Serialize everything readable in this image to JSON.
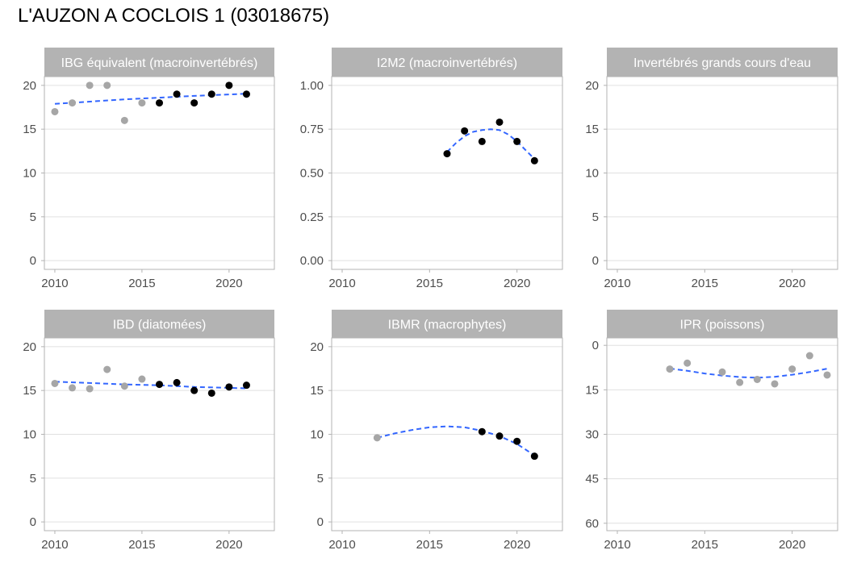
{
  "title": "L'AUZON A COCLOIS 1 (03018675)",
  "colors": {
    "strip": "#b3b3b3",
    "strip_text": "#ffffff",
    "grid": "#e0e0e0",
    "frame": "#b3b3b3",
    "tick_text": "#4d4d4d",
    "point_recent": "#000000",
    "point_old": "#a6a6a6",
    "trend": "#3366ff"
  },
  "chart_data": [
    {
      "type": "scatter",
      "title": "IBG équivalent (macroinvertébrés)",
      "xlim": [
        2009.4,
        2022.6
      ],
      "ylim": [
        -1,
        21
      ],
      "x_ticks": [
        2010,
        2015,
        2020
      ],
      "y_ticks": [
        0,
        5,
        10,
        15,
        20
      ],
      "y_tick_labels": [
        "0",
        "5",
        "10",
        "15",
        "20"
      ],
      "series": [
        {
          "color": "#a6a6a6",
          "points": [
            [
              2010,
              17
            ],
            [
              2011,
              18
            ],
            [
              2012,
              20
            ],
            [
              2013,
              20
            ],
            [
              2014,
              16
            ],
            [
              2015,
              18
            ]
          ]
        },
        {
          "color": "#000000",
          "points": [
            [
              2016,
              18
            ],
            [
              2017,
              19
            ],
            [
              2018,
              18
            ],
            [
              2019,
              19
            ],
            [
              2020,
              20
            ],
            [
              2021,
              19
            ]
          ]
        }
      ],
      "trend": [
        [
          2010,
          17.9
        ],
        [
          2012,
          18.15
        ],
        [
          2014,
          18.4
        ],
        [
          2016,
          18.6
        ],
        [
          2018,
          18.8
        ],
        [
          2021,
          19.05
        ]
      ]
    },
    {
      "type": "scatter",
      "title": "I2M2 (macroinvertébrés)",
      "xlim": [
        2009.4,
        2022.6
      ],
      "ylim": [
        -0.05,
        1.05
      ],
      "x_ticks": [
        2010,
        2015,
        2020
      ],
      "y_ticks": [
        0,
        0.25,
        0.5,
        0.75,
        1
      ],
      "y_tick_labels": [
        "0.00",
        "0.25",
        "0.50",
        "0.75",
        "1.00"
      ],
      "series": [
        {
          "color": "#000000",
          "points": [
            [
              2016,
              0.61
            ],
            [
              2017,
              0.74
            ],
            [
              2018,
              0.68
            ],
            [
              2019,
              0.79
            ],
            [
              2020,
              0.68
            ],
            [
              2021,
              0.57
            ]
          ]
        }
      ],
      "trend": [
        [
          2016,
          0.62
        ],
        [
          2016.5,
          0.67
        ],
        [
          2017,
          0.71
        ],
        [
          2017.5,
          0.735
        ],
        [
          2018,
          0.745
        ],
        [
          2018.5,
          0.75
        ],
        [
          2019,
          0.745
        ],
        [
          2019.5,
          0.72
        ],
        [
          2020,
          0.68
        ],
        [
          2020.5,
          0.63
        ],
        [
          2021,
          0.58
        ]
      ]
    },
    {
      "type": "scatter",
      "title": "Invertébrés grands cours d'eau",
      "xlim": [
        2009.4,
        2022.6
      ],
      "ylim": [
        -1,
        21
      ],
      "x_ticks": [
        2010,
        2015,
        2020
      ],
      "y_ticks": [
        0,
        5,
        10,
        15,
        20
      ],
      "y_tick_labels": [
        "0",
        "5",
        "10",
        "15",
        "20"
      ],
      "series": [],
      "trend": []
    },
    {
      "type": "scatter",
      "title": "IBD (diatomées)",
      "xlim": [
        2009.4,
        2022.6
      ],
      "ylim": [
        -1,
        21
      ],
      "x_ticks": [
        2010,
        2015,
        2020
      ],
      "y_ticks": [
        0,
        5,
        10,
        15,
        20
      ],
      "y_tick_labels": [
        "0",
        "5",
        "10",
        "15",
        "20"
      ],
      "series": [
        {
          "color": "#a6a6a6",
          "points": [
            [
              2010,
              15.8
            ],
            [
              2011,
              15.3
            ],
            [
              2012,
              15.2
            ],
            [
              2013,
              17.4
            ],
            [
              2014,
              15.5
            ],
            [
              2015,
              16.3
            ]
          ]
        },
        {
          "color": "#000000",
          "points": [
            [
              2016,
              15.7
            ],
            [
              2017,
              15.9
            ],
            [
              2018,
              15.0
            ],
            [
              2019,
              14.7
            ],
            [
              2020,
              15.4
            ],
            [
              2021,
              15.6
            ]
          ]
        }
      ],
      "trend": [
        [
          2010,
          16.0
        ],
        [
          2012,
          15.85
        ],
        [
          2014,
          15.7
        ],
        [
          2016,
          15.6
        ],
        [
          2018,
          15.4
        ],
        [
          2021,
          15.25
        ]
      ]
    },
    {
      "type": "scatter",
      "title": "IBMR (macrophytes)",
      "xlim": [
        2009.4,
        2022.6
      ],
      "ylim": [
        -1,
        21
      ],
      "x_ticks": [
        2010,
        2015,
        2020
      ],
      "y_ticks": [
        0,
        5,
        10,
        15,
        20
      ],
      "y_tick_labels": [
        "0",
        "5",
        "10",
        "15",
        "20"
      ],
      "series": [
        {
          "color": "#a6a6a6",
          "points": [
            [
              2012,
              9.6
            ]
          ]
        },
        {
          "color": "#000000",
          "points": [
            [
              2018,
              10.3
            ],
            [
              2019,
              9.8
            ],
            [
              2020,
              9.2
            ],
            [
              2021,
              7.5
            ]
          ]
        }
      ],
      "trend": [
        [
          2012,
          9.6
        ],
        [
          2013,
          10.1
        ],
        [
          2014,
          10.5
        ],
        [
          2015,
          10.8
        ],
        [
          2016,
          10.9
        ],
        [
          2017,
          10.8
        ],
        [
          2018,
          10.4
        ],
        [
          2019,
          9.8
        ],
        [
          2020,
          8.9
        ],
        [
          2021,
          7.6
        ]
      ]
    },
    {
      "type": "scatter",
      "title": "IPR (poissons)",
      "y_reversed": true,
      "xlim": [
        2009.4,
        2022.6
      ],
      "ylim": [
        -2.5,
        62.5
      ],
      "x_ticks": [
        2010,
        2015,
        2020
      ],
      "y_ticks": [
        0,
        15,
        30,
        45,
        60
      ],
      "y_tick_labels": [
        "0",
        "15",
        "30",
        "45",
        "60"
      ],
      "series": [
        {
          "color": "#a6a6a6",
          "points": [
            [
              2013,
              8
            ],
            [
              2014,
              6
            ],
            [
              2016,
              9
            ],
            [
              2017,
              12.5
            ],
            [
              2018,
              11.5
            ],
            [
              2019,
              13
            ],
            [
              2020,
              8
            ],
            [
              2021,
              3.5
            ],
            [
              2022,
              10
            ]
          ]
        }
      ],
      "trend": [
        [
          2013,
          7.8
        ],
        [
          2014,
          8.6
        ],
        [
          2015,
          9.5
        ],
        [
          2016,
          10.2
        ],
        [
          2017,
          10.7
        ],
        [
          2018,
          10.9
        ],
        [
          2019,
          10.6
        ],
        [
          2020,
          9.9
        ],
        [
          2021,
          9.0
        ],
        [
          2022,
          7.9
        ]
      ]
    }
  ]
}
